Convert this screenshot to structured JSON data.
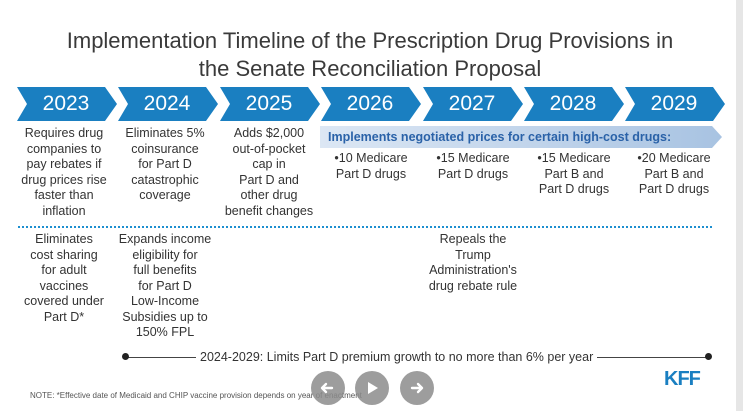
{
  "title_line1": "Implementation Timeline of the Prescription Drug Provisions in",
  "title_line2": "the Senate Reconciliation Proposal",
  "brand_color": "#1a7fc1",
  "years": [
    "2023",
    "2024",
    "2025",
    "2026",
    "2027",
    "2028",
    "2029"
  ],
  "row1": {
    "y2023": [
      "Requires drug",
      "companies to",
      "pay rebates if",
      "drug prices rise",
      "faster than",
      "inflation"
    ],
    "y2024": [
      "Eliminates 5%",
      "coinsurance",
      "for Part D",
      "catastrophic",
      "coverage"
    ],
    "y2025": [
      "Adds $2,000",
      "out-of-pocket",
      "cap in",
      "Part D and",
      "other drug",
      "benefit changes"
    ],
    "negotiated_banner": "Implements negotiated prices for certain high-cost drugs:",
    "y2026": [
      "•10 Medicare",
      "Part D drugs"
    ],
    "y2027": [
      "•15 Medicare",
      "Part D drugs"
    ],
    "y2028": [
      "•15 Medicare",
      "Part B and",
      "Part D drugs"
    ],
    "y2029": [
      "•20 Medicare",
      "Part B and",
      "Part D drugs"
    ]
  },
  "row2": {
    "y2023": [
      "Eliminates",
      "cost sharing",
      "for adult",
      "vaccines",
      "covered under",
      "Part D*"
    ],
    "y2024": [
      "Expands income",
      "eligibility for",
      "full benefits",
      "for Part D",
      "Low-Income",
      "Subsidies up to",
      "150% FPL"
    ],
    "y2027": [
      "Repeals the",
      "Trump",
      "Administration's",
      "drug rebate rule"
    ]
  },
  "bottom_timeline": "2024-2029:  Limits Part D premium growth to no more than 6% per year",
  "note": "NOTE: *Effective date of Medicaid and CHIP vaccine provision depends on year of enactment",
  "logo": "KFF",
  "nav": {
    "prev_icon": "arrow-left-icon",
    "play_icon": "play-icon",
    "next_icon": "arrow-right-icon"
  }
}
